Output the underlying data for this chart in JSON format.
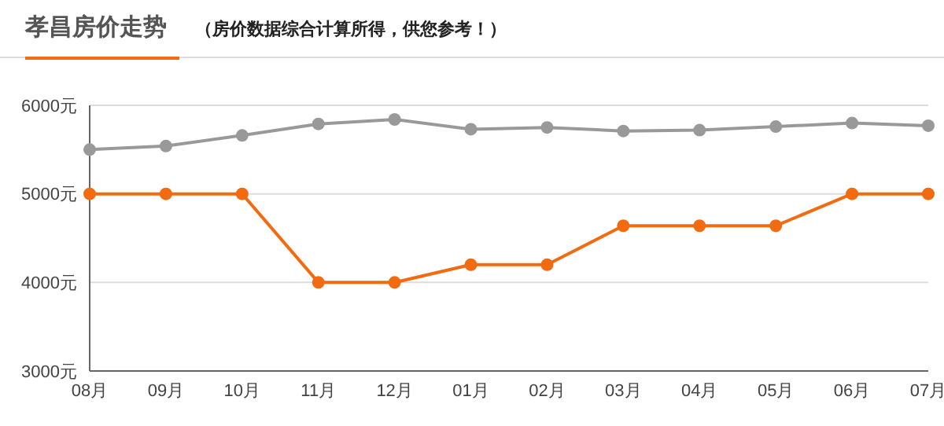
{
  "chart_data": {
    "type": "line",
    "title": "孝昌房价走势",
    "subtitle": "（房价数据综合计算所得，供您参考！）",
    "categories": [
      "08月",
      "09月",
      "10月",
      "11月",
      "12月",
      "01月",
      "02月",
      "03月",
      "04月",
      "05月",
      "06月",
      "07月"
    ],
    "series": [
      {
        "color": "#999999",
        "values": [
          5500,
          5540,
          5660,
          5790,
          5840,
          5730,
          5750,
          5710,
          5720,
          5760,
          5800,
          5770
        ]
      },
      {
        "color": "#f26b11",
        "values": [
          5000,
          5000,
          5000,
          4000,
          4000,
          4200,
          4200,
          4640,
          4640,
          4640,
          5000,
          5000
        ]
      }
    ],
    "ylim": [
      3000,
      6000
    ],
    "yticks": [
      {
        "value": 3000,
        "label": "3000元"
      },
      {
        "value": 4000,
        "label": "4000元"
      },
      {
        "value": 5000,
        "label": "5000元"
      },
      {
        "value": 6000,
        "label": "6000元"
      }
    ],
    "grid": "y",
    "marker": "circle",
    "line_style": "solid"
  }
}
